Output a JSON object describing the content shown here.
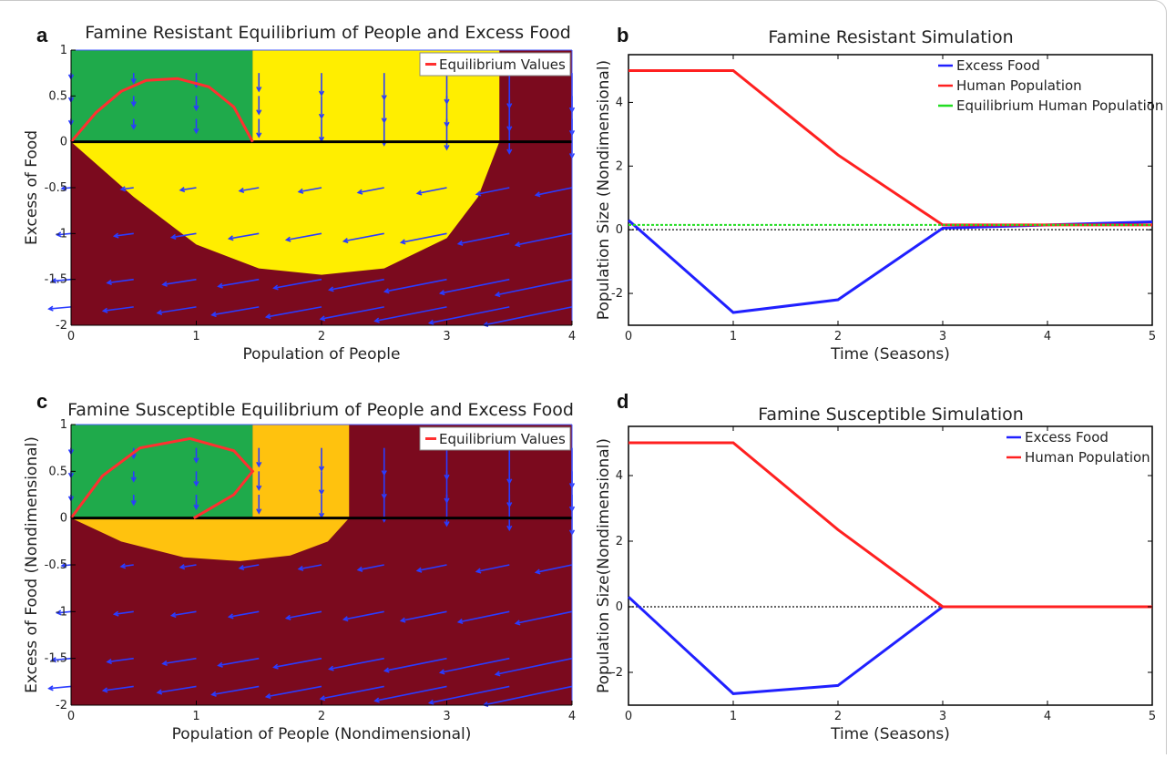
{
  "chart_data": [
    {
      "panel": "a",
      "type": "heatmap",
      "title": "Famine Resistant Equilibrium of People and Excess Food",
      "xlabel": "Population of People",
      "ylabel": "Excess of Food",
      "xlim": [
        0,
        4
      ],
      "ylim": [
        -2,
        1
      ],
      "xticks": [
        "0",
        "1",
        "2",
        "3",
        "4"
      ],
      "yticks": [
        "1",
        "0.5",
        "0",
        "-0.5",
        "-1",
        "-1.5",
        "-2"
      ],
      "legend": {
        "position": "top-right",
        "entries": [
          {
            "label": "Equilibrium Values",
            "color": "#ff3030"
          }
        ]
      },
      "region_colors": {
        "stable": "#1faa4b",
        "transition": "#ffee00",
        "famine": "#7b0a1e"
      },
      "green_region_x": [
        0,
        1.45
      ],
      "yellow_region": {
        "top_x": [
          1.45,
          3.42
        ],
        "bottom_boundary": [
          [
            0,
            0
          ],
          [
            0.5,
            -0.6
          ],
          [
            1,
            -1.12
          ],
          [
            1.5,
            -1.38
          ],
          [
            2,
            -1.45
          ],
          [
            2.5,
            -1.38
          ],
          [
            3,
            -1.05
          ],
          [
            3.25,
            -0.6
          ],
          [
            3.42,
            0
          ]
        ]
      },
      "equilibrium_curve": {
        "x": [
          0,
          0.2,
          0.4,
          0.6,
          0.85,
          1.1,
          1.3,
          1.45
        ],
        "y": [
          0,
          0.32,
          0.55,
          0.67,
          0.69,
          0.6,
          0.38,
          0
        ]
      },
      "zero_line": 0,
      "arrow_grid": {
        "x": [
          0,
          0.5,
          1,
          1.5,
          2,
          2.5,
          3,
          3.5,
          4
        ],
        "y": [
          0.75,
          0.5,
          0.25,
          -0.5,
          -1,
          -1.5,
          -1.8
        ]
      }
    },
    {
      "panel": "b",
      "type": "line",
      "title": "Famine Resistant Simulation",
      "xlabel": "Time (Seasons)",
      "ylabel": "Population Size (Nondimensional)",
      "xlim": [
        0,
        5
      ],
      "ylim": [
        -3,
        5.5
      ],
      "xticks": [
        "0",
        "1",
        "2",
        "3",
        "4",
        "5"
      ],
      "yticks": [
        "4",
        "2",
        "0",
        "-2"
      ],
      "legend": {
        "position": "top-right"
      },
      "x": [
        0,
        1,
        2,
        3,
        4,
        5
      ],
      "series": [
        {
          "name": "Excess Food",
          "color": "#2020ff",
          "values": [
            0.3,
            -2.6,
            -2.2,
            0.05,
            0.15,
            0.25
          ]
        },
        {
          "name": "Human Population",
          "color": "#ff2020",
          "values": [
            5,
            5,
            2.35,
            0.15,
            0.15,
            0.15
          ]
        },
        {
          "name": "Equilibrium Human Population",
          "color": "#22dd22",
          "values": [
            0.15,
            0.15,
            0.15,
            0.15,
            0.15,
            0.15
          ]
        }
      ]
    },
    {
      "panel": "c",
      "type": "heatmap",
      "title": "Famine Susceptible Equilibrium of People and Excess Food",
      "xlabel": "Population of People (Nondimensional)",
      "ylabel": "Excess of Food (Nondimensional)",
      "xlim": [
        0,
        4
      ],
      "ylim": [
        -2,
        1
      ],
      "xticks": [
        "0",
        "1",
        "2",
        "3",
        "4"
      ],
      "yticks": [
        "1",
        "0.5",
        "0",
        "-0.5",
        "-1",
        "-1.5",
        "-2"
      ],
      "legend": {
        "position": "top-right",
        "entries": [
          {
            "label": "Equilibrium Values",
            "color": "#ff3030"
          }
        ]
      },
      "region_colors": {
        "stable": "#1faa4b",
        "transition": "#ffc20e",
        "famine": "#7b0a1e"
      },
      "green_region_x": [
        0,
        1.45
      ],
      "yellow_region": {
        "top_x": [
          1.45,
          2.22
        ],
        "bottom_boundary": [
          [
            0,
            0
          ],
          [
            0.4,
            -0.25
          ],
          [
            0.9,
            -0.42
          ],
          [
            1.35,
            -0.46
          ],
          [
            1.75,
            -0.4
          ],
          [
            2.05,
            -0.25
          ],
          [
            2.22,
            0
          ]
        ]
      },
      "equilibrium_curve": {
        "x": [
          0,
          0.25,
          0.55,
          0.95,
          1.3,
          1.45,
          1.3,
          0.98
        ],
        "y": [
          0,
          0.45,
          0.75,
          0.85,
          0.72,
          0.5,
          0.25,
          0
        ]
      },
      "zero_line": 0,
      "arrow_grid": {
        "x": [
          0,
          0.5,
          1,
          1.5,
          2,
          2.5,
          3,
          3.5,
          4
        ],
        "y": [
          0.75,
          0.5,
          0.25,
          -0.5,
          -1,
          -1.5,
          -1.8
        ]
      }
    },
    {
      "panel": "d",
      "type": "line",
      "title": "Famine Susceptible Simulation",
      "xlabel": "Time (Seasons)",
      "ylabel": "Population Size(Nondimensional)",
      "xlim": [
        0,
        5
      ],
      "ylim": [
        -3,
        5.5
      ],
      "xticks": [
        "0",
        "1",
        "2",
        "3",
        "4",
        "5"
      ],
      "yticks": [
        "4",
        "2",
        "0",
        "-2"
      ],
      "legend": {
        "position": "top-right"
      },
      "x": [
        0,
        1,
        2,
        3,
        4,
        5
      ],
      "series": [
        {
          "name": "Excess Food",
          "color": "#2020ff",
          "values": [
            0.3,
            -2.65,
            -2.4,
            0,
            0,
            0
          ]
        },
        {
          "name": "Human Population",
          "color": "#ff2020",
          "values": [
            5,
            5,
            2.35,
            0,
            0,
            0
          ]
        }
      ]
    }
  ]
}
